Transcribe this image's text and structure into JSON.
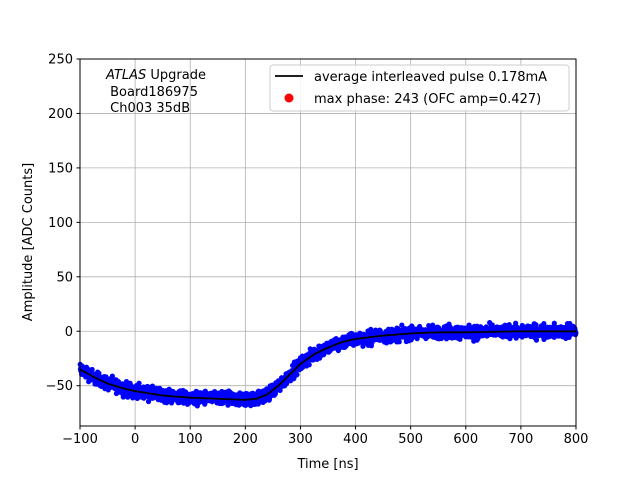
{
  "chart_data": {
    "type": "scatter",
    "title": "",
    "xlabel": "Time [ns]",
    "ylabel": "Amplitude [ADC Counts]",
    "xlim": [
      -100,
      800
    ],
    "ylim": [
      -87,
      250
    ],
    "xticks": [
      -100,
      0,
      100,
      200,
      300,
      400,
      500,
      600,
      700,
      800
    ],
    "yticks": [
      -50,
      0,
      50,
      100,
      150,
      200,
      250
    ],
    "grid": true,
    "legend_placement": "top-right",
    "annotation": {
      "italic": "ATLAS",
      "line1_rest": " Upgrade",
      "line2": " Board186975",
      "line3": " Ch003 35dB"
    },
    "series": [
      {
        "name": "average interleaved pulse 0.178mA",
        "kind": "line",
        "color": "#000000",
        "x": [
          -100,
          -75,
          -50,
          -25,
          0,
          50,
          100,
          150,
          200,
          220,
          240,
          260,
          280,
          300,
          325,
          350,
          375,
          400,
          450,
          500,
          550,
          600,
          700,
          800
        ],
        "y": [
          -35,
          -42,
          -48,
          -52,
          -55,
          -59,
          -61,
          -62,
          -63,
          -62,
          -58,
          -50,
          -40,
          -30,
          -21,
          -15,
          -10,
          -7,
          -4,
          -2,
          -1,
          -1,
          0,
          0
        ]
      },
      {
        "name": "max phase: 243 (OFC amp=0.427)",
        "kind": "marker",
        "color": "#ff0000"
      },
      {
        "kind": "scatter",
        "color": "#0000ff",
        "x_range": [
          -100,
          800
        ]
      }
    ]
  }
}
